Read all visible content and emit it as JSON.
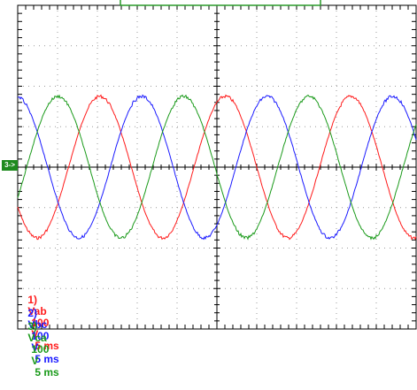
{
  "screen": {
    "background": "#ffffff",
    "grid_color": "#000000",
    "divisions_x": 10,
    "divisions_y": 8
  },
  "marker": {
    "label": "3->",
    "color": "#1f8a1f"
  },
  "channels": [
    {
      "id": 1,
      "prefix": "1)",
      "name": "Vab",
      "scale": "100",
      "unit": "V",
      "time": "5 ms",
      "color": "#ff1a1a",
      "phase_deg": 0
    },
    {
      "id": 2,
      "prefix": "2)",
      "name": "Vbc",
      "scale": "100",
      "unit": "V",
      "time": "5 ms",
      "color": "#1a1aff",
      "phase_deg": -120
    },
    {
      "id": 3,
      "prefix": "3)",
      "name": "Vca",
      "scale": "100",
      "unit": "V",
      "time": "5 ms",
      "color": "#1a9a1a",
      "phase_deg": 120
    }
  ],
  "waveform": {
    "amplitude_div": 1.75,
    "period_div": 3.15
  }
}
